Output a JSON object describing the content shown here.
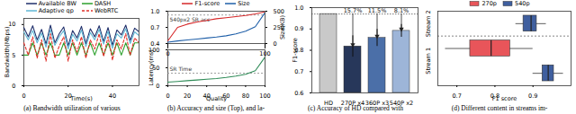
{
  "chart_data": [
    {
      "type": "line",
      "caption": "(a) Bandwidth utilization of various",
      "x_label": "Time(s)",
      "y_label": "Bandwidth(Mbps)",
      "legend": "top",
      "x": [
        0,
        2,
        4,
        6,
        8,
        10,
        12,
        14,
        16,
        18,
        20,
        22,
        24,
        26,
        28,
        30,
        32,
        34,
        36,
        38,
        40,
        42,
        44,
        46,
        48,
        50,
        52
      ],
      "xlim": [
        0,
        52
      ],
      "xticks": [
        0,
        20,
        40
      ],
      "ylim": [
        0,
        11
      ],
      "yticks": [
        0,
        5,
        10
      ],
      "series": [
        {
          "name": "Available BW",
          "color": "#1f2f6b",
          "line_style": "solid",
          "values": [
            9.5,
            8,
            9.8,
            7.5,
            9.2,
            6.8,
            9.9,
            7,
            8.5,
            9.6,
            6.5,
            9,
            7.8,
            9.7,
            6.9,
            9.3,
            8,
            9.8,
            7.2,
            9.5,
            6.6,
            9.1,
            8.3,
            9.9,
            7.4,
            9.4,
            8.8
          ]
        },
        {
          "name": "DASH",
          "color": "#2ca02c",
          "line_style": "solid",
          "values": [
            5,
            5,
            7,
            5,
            7,
            5,
            7,
            5,
            5,
            7,
            5,
            7,
            5,
            7,
            5,
            7,
            5,
            7,
            5,
            7,
            5,
            7,
            5,
            7,
            5,
            7,
            7
          ]
        },
        {
          "name": "Adaptive qp",
          "color": "#5fb7d4",
          "line_style": "solid",
          "values": [
            8.8,
            7.5,
            9,
            7,
            8.6,
            6.3,
            9.2,
            6.6,
            8,
            9,
            6,
            8.4,
            7.3,
            9.1,
            6.4,
            8.7,
            7.5,
            9.2,
            6.8,
            8.9,
            6.1,
            8.5,
            7.8,
            9.3,
            6.9,
            8.8,
            8.2
          ]
        },
        {
          "name": "WebRTC",
          "color": "#e0302a",
          "line_style": "dashed",
          "values": [
            7,
            5,
            8,
            4.5,
            7.5,
            4,
            8.5,
            4.5,
            6.5,
            8,
            4,
            7.5,
            5.5,
            8,
            4.5,
            7.5,
            6,
            8.5,
            4.8,
            8,
            4.2,
            7.5,
            6,
            8.5,
            5,
            7.8,
            7
          ]
        }
      ]
    },
    {
      "type": "line",
      "legend": "top",
      "tick_labels": "y",
      "x": [
        0,
        10,
        20,
        30,
        40,
        50,
        60,
        70,
        80,
        90,
        100
      ],
      "xlim": [
        0,
        100
      ],
      "ylim": [
        0.4,
        1.0
      ],
      "yticks": [
        0.4,
        0.7,
        {
          "value": 1,
          "label": "1.0"
        }
      ],
      "y2lim": [
        0,
        500
      ],
      "y2ticks": [
        0,
        250,
        500
      ],
      "y2_label": "Size(KB)",
      "annotations": [
        {
          "text": "540px2 SR acc",
          "y": 0.93
        }
      ],
      "series": [
        {
          "name": "F1-score",
          "color": "#d62728",
          "line_style": "solid",
          "values": [
            0.45,
            0.7,
            0.76,
            0.8,
            0.83,
            0.86,
            0.88,
            0.9,
            0.92,
            0.95,
            0.99
          ]
        },
        {
          "name": "Size",
          "color": "#1f5fa8",
          "line_style": "solid",
          "axis": "y2",
          "values": [
            20,
            40,
            55,
            70,
            85,
            100,
            120,
            150,
            190,
            260,
            480
          ]
        }
      ]
    },
    {
      "type": "line",
      "caption": "(b) Accuracy and size (Top), and la-",
      "x_label": "Quality",
      "y_label": "Latency(ms)",
      "x": [
        0,
        10,
        20,
        30,
        40,
        50,
        60,
        70,
        80,
        90,
        100
      ],
      "xlim": [
        0,
        100
      ],
      "xticks": [
        0,
        20,
        40,
        60,
        80,
        100
      ],
      "ylim": [
        0,
        100
      ],
      "yticks": [
        0,
        50,
        100
      ],
      "annotations": [
        {
          "text": "SR Time",
          "y": 35
        }
      ],
      "series": [
        {
          "color": "#2e8b57",
          "line_style": "solid",
          "values": [
            10,
            12,
            14,
            16,
            18,
            20,
            23,
            27,
            32,
            42,
            80
          ]
        }
      ]
    },
    {
      "type": "bar",
      "caption": "(c) Accuracy of HD compared with",
      "y_label": "F1-score",
      "categories": [
        "HD",
        "270P x4",
        "360P x3",
        "540P x2"
      ],
      "values": [
        0.97,
        0.818,
        0.858,
        0.891
      ],
      "errors": [
        null,
        0.05,
        0.04,
        0.03
      ],
      "colors": [
        "#c9c9c9",
        "#27375a",
        "#4b6fa8",
        "#9db5d8"
      ],
      "drops": [
        null,
        15.7,
        11.5,
        8.1
      ],
      "drop_labels": [
        null,
        "15.7%",
        "11.5%",
        "8.1%"
      ],
      "ylim": [
        0.6,
        1.0
      ],
      "yticks": [
        0.6,
        0.7,
        0.8,
        0.9,
        {
          "value": 1,
          "label": "1.0"
        }
      ]
    },
    {
      "type": "box",
      "orientation": "horizontal",
      "caption": "(d) Different content in streams im-",
      "x_label": "F1 score",
      "legend": "top",
      "xlim": [
        0.65,
        1.0
      ],
      "xticks": [
        0.7,
        0.8,
        0.9
      ],
      "series": [
        {
          "name": "270p",
          "color": "#e8555a"
        },
        {
          "name": "540p",
          "color": "#3f5f9f"
        }
      ],
      "boxes": [
        {
          "group": "Stream 2",
          "series": "540p",
          "min": 0.855,
          "q1": 0.875,
          "median": 0.895,
          "q3": 0.91,
          "max": 0.935
        },
        {
          "group": "Stream 1",
          "series": "270p",
          "min": 0.67,
          "q1": 0.735,
          "median": 0.79,
          "q3": 0.84,
          "max": 0.9
        },
        {
          "group": "Stream 1",
          "series": "540p",
          "min": 0.9,
          "q1": 0.925,
          "median": 0.94,
          "q3": 0.955,
          "max": 0.98
        }
      ]
    }
  ]
}
